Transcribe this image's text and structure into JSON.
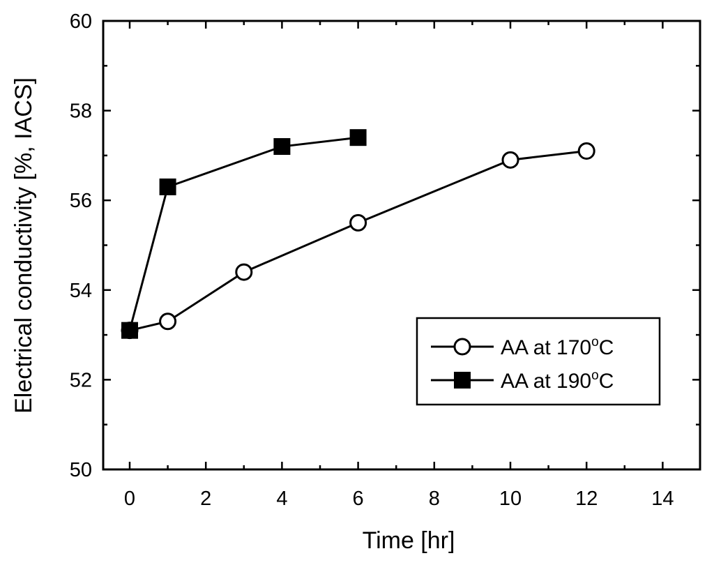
{
  "chart_data": {
    "type": "line",
    "title": "",
    "xlabel": "Time [hr]",
    "ylabel": "Electrical conductivity [%, IACS]",
    "xlim": [
      0,
      15
    ],
    "ylim": [
      50,
      60
    ],
    "xticks": [
      0,
      2,
      4,
      6,
      8,
      10,
      12,
      14
    ],
    "yticks": [
      50,
      52,
      54,
      56,
      58,
      60
    ],
    "grid": false,
    "legend_position": "lower-right",
    "series": [
      {
        "name": "AA at 170°C",
        "label_main": "AA at 170",
        "label_sup": "o",
        "label_unit": "C",
        "marker": "open-circle",
        "x": [
          0,
          1,
          3,
          6,
          10,
          12
        ],
        "y": [
          53.1,
          53.3,
          54.4,
          55.5,
          56.9,
          57.1
        ]
      },
      {
        "name": "AA at 190°C",
        "label_main": "AA at 190",
        "label_sup": "o",
        "label_unit": "C",
        "marker": "filled-square",
        "x": [
          0,
          1,
          4,
          6
        ],
        "y": [
          53.1,
          56.3,
          57.2,
          57.4
        ]
      }
    ]
  }
}
